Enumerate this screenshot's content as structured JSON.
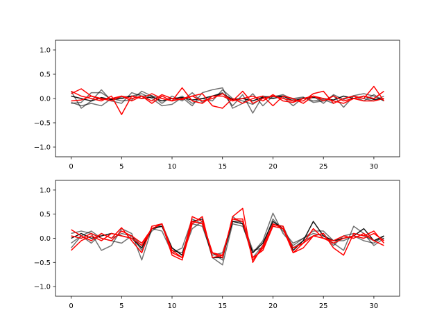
{
  "colors": {
    "background": "#ffffff",
    "black_series": "#000000",
    "red_series": "#ff0000"
  },
  "chart_data": [
    {
      "type": "line",
      "title": "",
      "xlabel": "",
      "ylabel": "",
      "xlim": [
        -1.55,
        32.55
      ],
      "ylim": [
        -1.2,
        1.2
      ],
      "grid": false,
      "legend": "none",
      "xticks": [
        0,
        5,
        10,
        15,
        20,
        25,
        30
      ],
      "xtick_labels": [
        "0",
        "5",
        "10",
        "15",
        "20",
        "25",
        "30"
      ],
      "yticks": [
        -1.0,
        -0.5,
        0.0,
        0.5,
        1.0
      ],
      "ytick_labels": [
        "−1.0",
        "−0.5",
        "0.0",
        "0.5",
        "1.0"
      ],
      "x": [
        0,
        1,
        2,
        3,
        4,
        5,
        6,
        7,
        8,
        9,
        10,
        11,
        12,
        13,
        14,
        15,
        16,
        17,
        18,
        19,
        20,
        21,
        22,
        23,
        24,
        25,
        26,
        27,
        28,
        29,
        30,
        31
      ],
      "series": [
        {
          "color": "#000000",
          "opacity": 0.55,
          "values": [
            0.15,
            -0.2,
            -0.05,
            0.18,
            -0.05,
            -0.1,
            0.12,
            0.05,
            0.06,
            -0.1,
            0.05,
            -0.05,
            0.12,
            -0.08,
            0.05,
            0.12,
            -0.15,
            0.08,
            -0.3,
            0.05,
            0.03,
            0.08,
            -0.02,
            0.0,
            0.05,
            -0.1,
            0.08,
            -0.02,
            0.06,
            0.1,
            0.05,
            -0.05
          ]
        },
        {
          "color": "#000000",
          "opacity": 0.55,
          "values": [
            -0.1,
            -0.08,
            0.12,
            0.12,
            -0.02,
            0.03,
            0.05,
            0.1,
            0.0,
            -0.15,
            -0.12,
            0.02,
            -0.15,
            0.12,
            0.18,
            0.22,
            -0.2,
            -0.1,
            0.1,
            -0.15,
            0.05,
            0.05,
            0.0,
            0.03,
            -0.08,
            -0.05,
            0.06,
            -0.18,
            0.05,
            -0.05,
            0.08,
            -0.05
          ]
        },
        {
          "color": "#000000",
          "opacity": 0.55,
          "values": [
            -0.08,
            -0.15,
            -0.1,
            -0.15,
            0.0,
            -0.05,
            -0.03,
            0.15,
            0.05,
            0.0,
            -0.05,
            0.05,
            -0.1,
            0.0,
            -0.05,
            0.18,
            0.0,
            -0.05,
            -0.12,
            0.02,
            0.05,
            0.03,
            -0.15,
            0.02,
            -0.05,
            -0.02,
            -0.1,
            0.0,
            0.05,
            0.0,
            -0.05,
            0.05
          ]
        },
        {
          "color": "#000000",
          "opacity": 0.9,
          "values": [
            0.05,
            0.0,
            -0.05,
            0.02,
            -0.02,
            0.0,
            0.05,
            0.0,
            0.03,
            -0.05,
            0.0,
            0.02,
            -0.03,
            0.0,
            0.05,
            0.1,
            -0.02,
            0.0,
            -0.05,
            0.03,
            0.0,
            0.05,
            -0.05,
            0.0,
            0.02,
            0.0,
            -0.03,
            0.05,
            0.0,
            0.05,
            -0.02,
            0.0
          ]
        },
        {
          "color": "#ff0000",
          "opacity": 1.0,
          "values": [
            0.15,
            0.05,
            0.0,
            -0.05,
            0.05,
            -0.33,
            0.05,
            0.0,
            0.1,
            0.0,
            -0.05,
            0.22,
            -0.05,
            -0.1,
            0.05,
            0.05,
            -0.05,
            0.15,
            -0.1,
            0.0,
            0.05,
            0.0,
            -0.05,
            -0.05,
            0.1,
            0.15,
            -0.1,
            0.0,
            0.05,
            0.0,
            0.25,
            -0.05
          ]
        },
        {
          "color": "#ff0000",
          "opacity": 1.0,
          "values": [
            0.1,
            0.2,
            0.05,
            0.0,
            -0.05,
            0.05,
            0.0,
            0.05,
            -0.1,
            0.05,
            -0.05,
            0.0,
            0.05,
            0.1,
            -0.15,
            -0.2,
            0.0,
            -0.1,
            0.0,
            0.05,
            -0.15,
            0.05,
            0.0,
            -0.1,
            0.05,
            0.0,
            -0.05,
            -0.1,
            0.0,
            0.05,
            0.0,
            0.15
          ]
        },
        {
          "color": "#ff0000",
          "opacity": 1.0,
          "values": [
            -0.05,
            -0.03,
            0.05,
            -0.02,
            0.0,
            0.05,
            -0.05,
            0.05,
            -0.05,
            0.08,
            0.0,
            -0.02,
            0.05,
            -0.05,
            0.0,
            0.1,
            -0.05,
            0.0,
            0.05,
            -0.05,
            0.08,
            -0.05,
            -0.08,
            0.0,
            0.05,
            -0.05,
            0.05,
            -0.05,
            0.0,
            -0.05,
            -0.05,
            0.0
          ]
        }
      ]
    },
    {
      "type": "line",
      "title": "",
      "xlabel": "",
      "ylabel": "",
      "xlim": [
        -1.55,
        32.55
      ],
      "ylim": [
        -1.2,
        1.2
      ],
      "grid": false,
      "legend": "none",
      "xticks": [
        0,
        5,
        10,
        15,
        20,
        25,
        30
      ],
      "xtick_labels": [
        "0",
        "5",
        "10",
        "15",
        "20",
        "25",
        "30"
      ],
      "yticks": [
        -1.0,
        -0.5,
        0.0,
        0.5,
        1.0
      ],
      "ytick_labels": [
        "−1.0",
        "−0.5",
        "0.0",
        "0.5",
        "1.0"
      ],
      "x": [
        0,
        1,
        2,
        3,
        4,
        5,
        6,
        7,
        8,
        9,
        10,
        11,
        12,
        13,
        14,
        15,
        16,
        17,
        18,
        19,
        20,
        21,
        22,
        23,
        24,
        25,
        26,
        27,
        28,
        29,
        30,
        31
      ],
      "series": [
        {
          "color": "#000000",
          "opacity": 0.55,
          "values": [
            0.1,
            0.15,
            0.1,
            -0.25,
            -0.15,
            0.2,
            0.1,
            -0.45,
            0.2,
            0.15,
            -0.3,
            -0.2,
            0.4,
            0.3,
            -0.4,
            -0.55,
            0.3,
            0.25,
            -0.3,
            -0.05,
            0.52,
            0.1,
            -0.15,
            0.0,
            0.1,
            0.05,
            -0.1,
            -0.25,
            0.25,
            0.1,
            -0.15,
            0.0
          ]
        },
        {
          "color": "#000000",
          "opacity": 0.55,
          "values": [
            -0.1,
            0.05,
            0.15,
            0.0,
            -0.05,
            -0.1,
            0.05,
            -0.15,
            0.15,
            0.3,
            -0.2,
            -0.35,
            0.2,
            0.35,
            -0.3,
            -0.45,
            0.45,
            0.3,
            -0.4,
            -0.15,
            0.4,
            0.15,
            -0.1,
            0.0,
            0.15,
            0.15,
            -0.05,
            -0.05,
            0.05,
            -0.05,
            -0.1,
            0.05
          ]
        },
        {
          "color": "#000000",
          "opacity": 0.55,
          "values": [
            -0.2,
            0.05,
            -0.1,
            0.1,
            0.0,
            0.1,
            0.05,
            -0.25,
            0.2,
            0.25,
            -0.25,
            -0.3,
            0.3,
            0.25,
            -0.35,
            -0.3,
            0.35,
            0.35,
            -0.25,
            -0.2,
            0.3,
            0.25,
            -0.2,
            -0.05,
            0.05,
            0.1,
            -0.15,
            0.05,
            0.1,
            0.05,
            -0.05,
            0.0
          ]
        },
        {
          "color": "#000000",
          "opacity": 0.9,
          "values": [
            0.0,
            0.1,
            0.0,
            0.05,
            0.1,
            0.05,
            0.0,
            -0.2,
            0.2,
            0.25,
            -0.2,
            -0.35,
            0.35,
            0.4,
            -0.4,
            -0.4,
            0.35,
            0.3,
            -0.3,
            -0.1,
            0.35,
            0.2,
            -0.25,
            -0.05,
            0.35,
            0.05,
            -0.05,
            0.0,
            0.05,
            0.2,
            -0.05,
            0.05
          ]
        },
        {
          "color": "#ff0000",
          "opacity": 1.0,
          "values": [
            0.18,
            0.05,
            -0.05,
            0.1,
            0.0,
            0.22,
            -0.05,
            -0.3,
            0.25,
            0.3,
            -0.3,
            -0.4,
            0.45,
            0.35,
            -0.3,
            -0.4,
            0.45,
            0.62,
            -0.5,
            -0.15,
            0.28,
            0.25,
            -0.3,
            -0.1,
            0.05,
            0.1,
            -0.2,
            -0.35,
            0.1,
            0.05,
            0.15,
            -0.1
          ]
        },
        {
          "color": "#ff0000",
          "opacity": 1.0,
          "values": [
            -0.25,
            -0.05,
            0.05,
            -0.05,
            0.1,
            0.05,
            0.0,
            -0.15,
            0.2,
            0.3,
            -0.35,
            -0.45,
            0.3,
            0.45,
            -0.4,
            -0.35,
            0.4,
            0.4,
            -0.45,
            -0.2,
            0.3,
            0.2,
            -0.2,
            -0.1,
            0.2,
            0.0,
            -0.05,
            0.05,
            0.0,
            0.1,
            -0.05,
            -0.15
          ]
        },
        {
          "color": "#ff0000",
          "opacity": 1.0,
          "values": [
            0.05,
            0.0,
            0.1,
            0.0,
            -0.05,
            0.15,
            0.05,
            -0.1,
            0.2,
            0.3,
            -0.25,
            -0.4,
            0.35,
            0.3,
            -0.3,
            -0.35,
            0.4,
            0.35,
            -0.4,
            -0.25,
            0.25,
            0.2,
            -0.3,
            -0.2,
            0.05,
            0.0,
            -0.1,
            0.0,
            0.05,
            0.0,
            0.1,
            -0.05
          ]
        }
      ]
    }
  ]
}
